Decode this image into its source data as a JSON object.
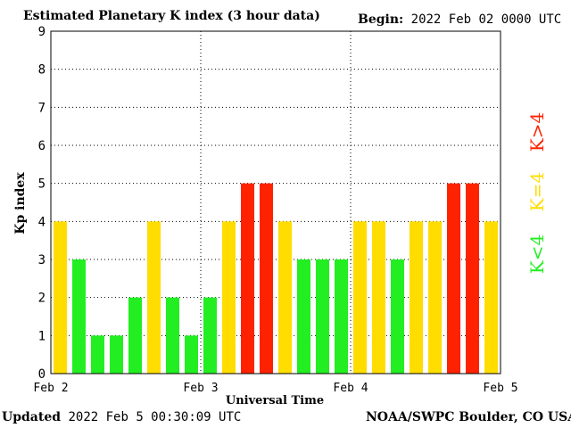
{
  "header": {
    "title": "Estimated Planetary K index (3 hour data)",
    "begin_label": "Begin:",
    "begin_value": "2022 Feb 02 0000 UTC"
  },
  "footer": {
    "updated_label": "Updated",
    "updated_value": "2022 Feb  5 00:30:09 UTC",
    "credit": "NOAA/SWPC Boulder, CO USA"
  },
  "colors": {
    "below": "#22ee22",
    "equal": "#ffdd00",
    "above": "#ff2200",
    "background": "#ffffff",
    "axis": "#000000"
  },
  "chart_data": {
    "type": "bar",
    "title": "Estimated Planetary K index (3 hour data)",
    "xlabel": "Universal Time",
    "ylabel": "Kp index",
    "ylim": [
      0,
      9
    ],
    "yticks": [
      "0",
      "1",
      "2",
      "3",
      "4",
      "5",
      "6",
      "7",
      "8",
      "9"
    ],
    "x_ticks": [
      "Feb 2",
      "Feb 3",
      "Feb 4",
      "Feb 5"
    ],
    "grid": true,
    "bar_interval_hours": 3,
    "values": [
      4,
      3,
      1,
      1,
      2,
      4,
      2,
      1,
      2,
      4,
      5,
      5,
      4,
      3,
      3,
      3,
      4,
      4,
      3,
      4,
      4,
      5,
      5,
      4
    ],
    "legend": [
      {
        "label": "K<4",
        "color": "#22ee22"
      },
      {
        "label": "K=4",
        "color": "#ffdd00"
      },
      {
        "label": "K>4",
        "color": "#ff2200"
      }
    ]
  }
}
